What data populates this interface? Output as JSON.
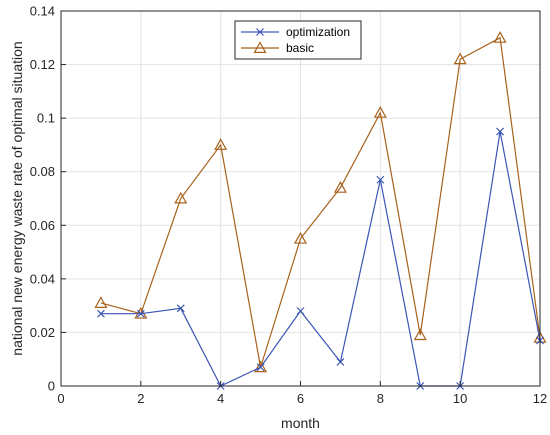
{
  "chart_data": {
    "type": "line",
    "xlabel": "month",
    "ylabel": "national new energy waste rate of optimal situation",
    "xlim": [
      0,
      12
    ],
    "ylim": [
      0,
      0.14
    ],
    "xticks": [
      "0",
      "2",
      "4",
      "6",
      "8",
      "10",
      "12"
    ],
    "yticks": [
      "0",
      "0.02",
      "0.04",
      "0.06",
      "0.08",
      "0.1",
      "0.12",
      "0.14"
    ],
    "grid": true,
    "legend_position": "top-center",
    "x": [
      1,
      2,
      3,
      4,
      5,
      6,
      7,
      8,
      9,
      10,
      11,
      12
    ],
    "series": [
      {
        "name": "optimization",
        "color": "#3c56b4",
        "marker": "x",
        "values": [
          0.027,
          0.027,
          0.029,
          0.0,
          0.007,
          0.028,
          0.009,
          0.077,
          0.0,
          0.0,
          0.095,
          0.017
        ]
      },
      {
        "name": "basic",
        "color": "#a7621c",
        "marker": "triangle",
        "values": [
          0.031,
          0.027,
          0.07,
          0.09,
          0.007,
          0.055,
          0.074,
          0.102,
          0.019,
          0.122,
          0.13,
          0.018
        ]
      }
    ]
  }
}
